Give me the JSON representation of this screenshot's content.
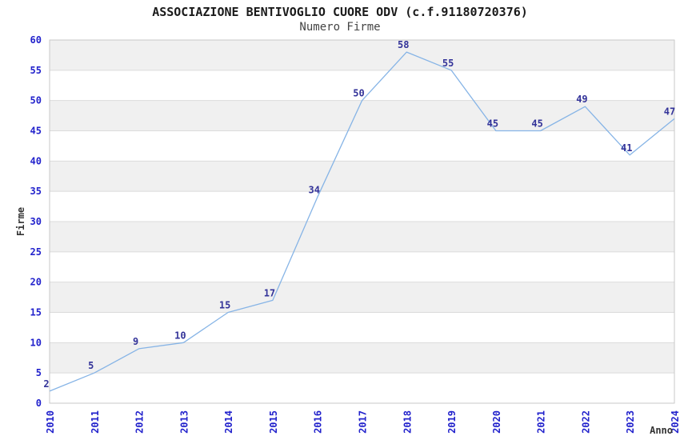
{
  "page": {
    "background": "#ffffff"
  },
  "chart_data": {
    "type": "line",
    "title": "ASSOCIAZIONE BENTIVOGLIO CUORE ODV (c.f.91180720376)",
    "subtitle": "Numero Firme",
    "xlabel": "Anno",
    "ylabel": "Firme",
    "categories": [
      "2010",
      "2011",
      "2012",
      "2013",
      "2014",
      "2015",
      "2016",
      "2017",
      "2018",
      "2019",
      "2020",
      "2021",
      "2022",
      "2023",
      "2024"
    ],
    "values": [
      2,
      5,
      9,
      10,
      15,
      17,
      34,
      50,
      58,
      55,
      45,
      45,
      49,
      41,
      47
    ],
    "ylim": [
      0,
      60
    ],
    "ytick_step": 5,
    "grid": true,
    "legend_position": "none",
    "band_style": "alternating 5-unit horizontal bands, gray on 5-10,15-20,25-30,35-40,45-50,55-60",
    "xtick_rotation": -90,
    "colors": {
      "line": "#86b4e6",
      "data_label": "#333399",
      "tick_label": "#2222cc",
      "band": "#f0f0f0",
      "gridline": "#dbdbdb",
      "plot_border": "#c9c9c9",
      "title": "#1a1a1a",
      "subtitle": "#444444",
      "axis_title": "#333333",
      "plot_background": "#ffffff"
    }
  }
}
